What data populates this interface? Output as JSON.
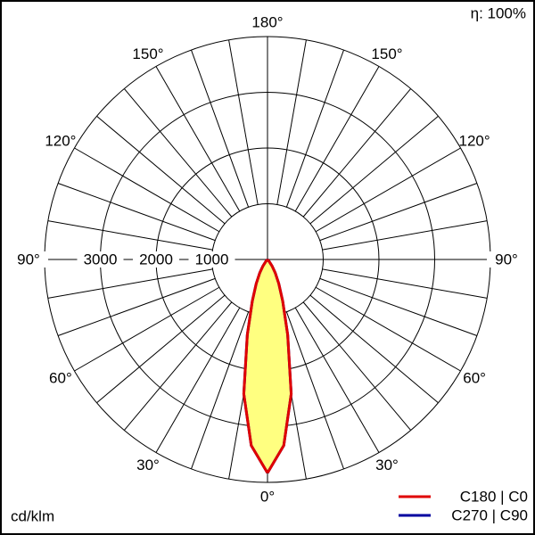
{
  "chart_data": {
    "type": "polar",
    "efficiency": "η: 100%",
    "unit": "cd/klm",
    "angles": [
      0,
      5,
      10,
      15,
      20,
      25,
      30,
      35,
      40,
      45,
      50,
      60,
      70,
      80,
      90
    ],
    "series": [
      {
        "name": "C270 | C90",
        "color": "#0000a0",
        "values": [
          3830,
          3350,
          2450,
          1400,
          800,
          480,
          280,
          140,
          50,
          0,
          0,
          0,
          0,
          0,
          0
        ]
      },
      {
        "name": "C180 | C0",
        "color": "#e00000",
        "values": [
          3830,
          3350,
          2450,
          1400,
          800,
          480,
          280,
          140,
          50,
          0,
          0,
          0,
          0,
          0,
          0
        ]
      }
    ],
    "fill": "#ffff80",
    "rlim": [
      0,
      4000
    ],
    "rticks": [
      1000,
      2000,
      3000
    ],
    "aticks": [
      {
        "value": 0,
        "label": "0°"
      },
      {
        "value": 30,
        "label": "30°"
      },
      {
        "value": 60,
        "label": "60°"
      },
      {
        "value": 90,
        "label": "90°"
      },
      {
        "value": 120,
        "label": "120°"
      },
      {
        "value": 150,
        "label": "150°"
      },
      {
        "value": 180,
        "label": "180°"
      }
    ],
    "agrid": [
      0,
      10,
      20,
      30,
      40,
      50,
      60,
      70,
      80,
      90,
      100,
      110,
      120,
      130,
      140,
      150,
      160,
      170,
      180
    ]
  }
}
